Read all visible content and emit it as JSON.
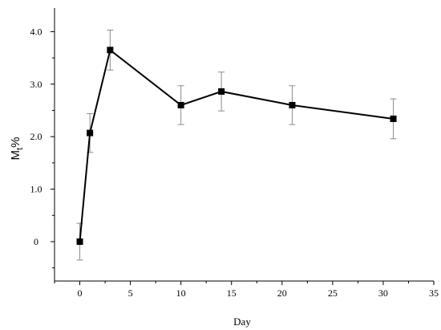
{
  "chart_data": {
    "type": "line",
    "xlabel": "Day",
    "ylabel": {
      "main": "M",
      "sub": "t",
      "suffix": "%"
    },
    "xlim": [
      -2.5,
      35
    ],
    "ylim": [
      -0.75,
      4.45
    ],
    "xticks": [
      0,
      5,
      10,
      15,
      20,
      25,
      30,
      35
    ],
    "xtick_labels": [
      "0",
      "5",
      "10",
      "15",
      "20",
      "25",
      "30",
      "35"
    ],
    "yticks": [
      0,
      1,
      2,
      3,
      4
    ],
    "ytick_labels": [
      "0",
      "1.0",
      "2.0",
      "3.0",
      "4.0"
    ],
    "grid": false,
    "series": [
      {
        "x": [
          0,
          1,
          3,
          10,
          14,
          21,
          31
        ],
        "y": [
          0.0,
          2.07,
          3.65,
          2.6,
          2.86,
          2.6,
          2.34
        ],
        "err": [
          0.35,
          0.37,
          0.38,
          0.37,
          0.37,
          0.37,
          0.38
        ],
        "marker": "square",
        "color": "#000000",
        "errorbar_color": "#8c8c8c"
      }
    ]
  }
}
